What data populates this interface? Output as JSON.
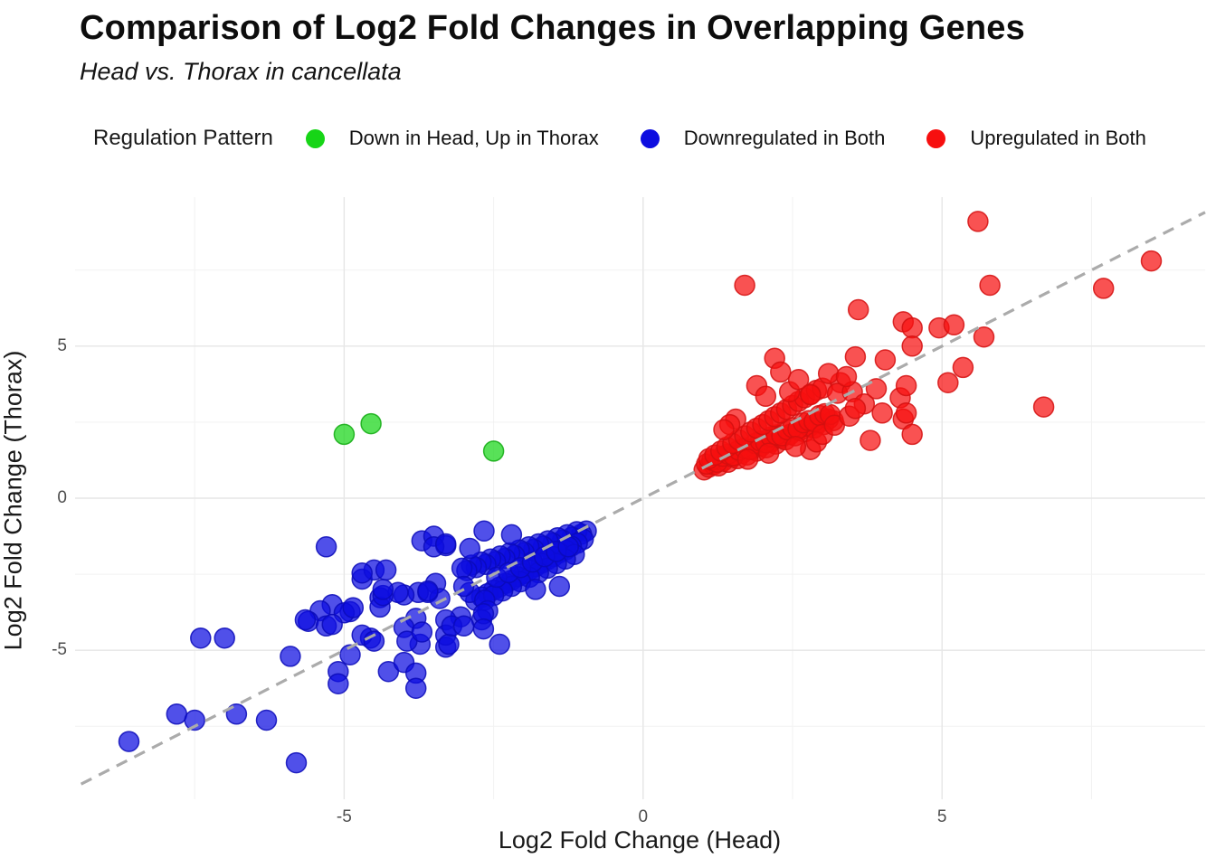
{
  "page": {
    "title": "Comparison of Log2 Fold Changes in Overlapping Genes",
    "subtitle": "Head vs. Thorax in cancellata"
  },
  "legend": {
    "title": "Regulation Pattern",
    "items": [
      {
        "label": "Down in Head, Up in Thorax",
        "color": "#17d517"
      },
      {
        "label": "Downregulated in Both",
        "color": "#0d0de0"
      },
      {
        "label": "Upregulated in Both",
        "color": "#f70f0f"
      }
    ]
  },
  "chart_data": {
    "type": "scatter",
    "title": "Comparison of Log2 Fold Changes in Overlapping Genes",
    "subtitle": "Head vs. Thorax in cancellata",
    "xlabel": "Log2 Fold Change (Head)",
    "ylabel": "Log2 Fold Change (Thorax)",
    "xlim": [
      -9.5,
      9.4
    ],
    "ylim": [
      -9.9,
      9.9
    ],
    "x_ticks": [
      -5,
      0,
      5
    ],
    "x_tick_labels": [
      "-5",
      "0",
      "5"
    ],
    "y_ticks": [
      -5,
      0,
      5
    ],
    "y_tick_labels": [
      "-5",
      "0",
      "5"
    ],
    "x_minor_ticks": [
      -7.5,
      -2.5,
      2.5,
      7.5
    ],
    "y_minor_ticks": [
      -7.5,
      -2.5,
      2.5,
      7.5
    ],
    "grid": true,
    "legend_position": "top",
    "identity_line": {
      "style": "dashed",
      "slope": 1,
      "intercept": 0,
      "color": "#ababab",
      "from": [
        -9.4,
        -9.4
      ],
      "to": [
        9.4,
        9.4
      ]
    },
    "point_radius_px": 11,
    "major_grid_color": "#e6e6e6",
    "minor_grid_color": "#f2f2f2",
    "series": [
      {
        "name": "Downregulated in Both",
        "color": "#0d0de0",
        "stroke": "#0a0ab8",
        "points": [
          [
            -0.95,
            -1.08
          ],
          [
            -1.03,
            -1.18
          ],
          [
            -1.11,
            -1.1
          ],
          [
            -1.19,
            -1.28
          ],
          [
            -1.27,
            -1.2
          ],
          [
            -1.35,
            -1.38
          ],
          [
            -1.43,
            -1.3
          ],
          [
            -1.51,
            -1.48
          ],
          [
            -1.59,
            -1.4
          ],
          [
            -1.67,
            -1.58
          ],
          [
            -1.75,
            -1.5
          ],
          [
            -1.83,
            -1.68
          ],
          [
            -1.91,
            -1.6
          ],
          [
            -1.99,
            -1.78
          ],
          [
            -2.07,
            -1.7
          ],
          [
            -2.15,
            -1.88
          ],
          [
            -2.23,
            -1.8
          ],
          [
            -2.31,
            -1.98
          ],
          [
            -2.39,
            -1.9
          ],
          [
            -2.47,
            -2.08
          ],
          [
            -2.55,
            -2.0
          ],
          [
            -2.63,
            -2.18
          ],
          [
            -2.71,
            -2.1
          ],
          [
            -2.79,
            -2.28
          ],
          [
            -2.87,
            -2.2
          ],
          [
            -2.95,
            -2.38
          ],
          [
            -3.03,
            -2.3
          ],
          [
            -1.0,
            -1.35
          ],
          [
            -1.1,
            -1.48
          ],
          [
            -1.2,
            -1.58
          ],
          [
            -1.3,
            -1.7
          ],
          [
            -1.4,
            -1.8
          ],
          [
            -1.5,
            -1.92
          ],
          [
            -1.6,
            -2.02
          ],
          [
            -1.7,
            -2.14
          ],
          [
            -1.8,
            -2.25
          ],
          [
            -1.9,
            -2.36
          ],
          [
            -2.0,
            -2.48
          ],
          [
            -2.1,
            -2.58
          ],
          [
            -2.2,
            -2.7
          ],
          [
            -2.3,
            -2.8
          ],
          [
            -2.4,
            -2.92
          ],
          [
            -2.5,
            -3.02
          ],
          [
            -2.6,
            -3.14
          ],
          [
            -2.7,
            -3.25
          ],
          [
            -2.8,
            -3.36
          ],
          [
            -2.9,
            -3.1
          ],
          [
            -3.0,
            -2.9
          ],
          [
            -1.15,
            -1.85
          ],
          [
            -1.3,
            -2.0
          ],
          [
            -1.45,
            -2.15
          ],
          [
            -1.6,
            -2.3
          ],
          [
            -1.75,
            -2.45
          ],
          [
            -1.9,
            -2.6
          ],
          [
            -2.05,
            -2.75
          ],
          [
            -2.2,
            -2.9
          ],
          [
            -2.35,
            -3.05
          ],
          [
            -2.5,
            -3.2
          ],
          [
            -2.65,
            -3.35
          ],
          [
            -2.45,
            -2.6
          ],
          [
            -2.25,
            -2.45
          ],
          [
            -2.05,
            -2.28
          ],
          [
            -1.85,
            -2.1
          ],
          [
            -1.65,
            -1.92
          ],
          [
            -1.45,
            -1.75
          ],
          [
            -1.25,
            -1.6
          ],
          [
            -1.4,
            -2.9
          ],
          [
            -1.8,
            -3.0
          ],
          [
            -2.6,
            -3.7
          ],
          [
            -2.7,
            -4.0
          ],
          [
            -2.67,
            -3.8
          ],
          [
            -2.67,
            -4.3
          ],
          [
            -2.4,
            -4.8
          ],
          [
            -3.05,
            -3.9
          ],
          [
            -3.3,
            -4.0
          ],
          [
            -3.3,
            -4.9
          ],
          [
            -3.73,
            -4.8
          ],
          [
            -3.8,
            -3.95
          ],
          [
            -4.0,
            -4.25
          ],
          [
            -4.56,
            -4.6
          ],
          [
            -3.47,
            -2.8
          ],
          [
            -3.6,
            -3.1
          ],
          [
            -3.76,
            -3.1
          ],
          [
            -4.0,
            -3.18
          ],
          [
            -4.4,
            -3.27
          ],
          [
            -4.4,
            -3.58
          ],
          [
            -4.9,
            -3.73
          ],
          [
            -4.7,
            -2.66
          ],
          [
            -4.5,
            -2.36
          ],
          [
            -4.3,
            -2.36
          ],
          [
            -4.7,
            -2.46
          ],
          [
            -4.1,
            -3.1
          ],
          [
            -4.35,
            -3.2
          ],
          [
            -4.35,
            -3.0
          ],
          [
            -5.2,
            -3.5
          ],
          [
            -5.4,
            -3.7
          ],
          [
            -5.0,
            -3.77
          ],
          [
            -4.85,
            -3.6
          ],
          [
            -5.6,
            -4.05
          ],
          [
            -5.65,
            -4.0
          ],
          [
            -5.3,
            -4.2
          ],
          [
            -3.7,
            -1.4
          ],
          [
            -3.5,
            -1.25
          ],
          [
            -3.3,
            -1.56
          ],
          [
            -3.5,
            -1.6
          ],
          [
            -3.3,
            -1.5
          ],
          [
            -2.9,
            -1.65
          ],
          [
            -2.66,
            -1.08
          ],
          [
            -2.2,
            -1.2
          ],
          [
            -5.3,
            -1.6
          ],
          [
            -3.4,
            -3.3
          ],
          [
            -3.6,
            -3.05
          ],
          [
            -7.4,
            -4.6
          ],
          [
            -7.0,
            -4.6
          ],
          [
            -5.9,
            -5.2
          ],
          [
            -7.8,
            -7.1
          ],
          [
            -7.5,
            -7.3
          ],
          [
            -6.8,
            -7.1
          ],
          [
            -6.3,
            -7.3
          ],
          [
            -8.6,
            -8.0
          ],
          [
            -5.8,
            -8.7
          ],
          [
            -4.9,
            -5.15
          ],
          [
            -5.1,
            -5.7
          ],
          [
            -5.1,
            -6.1
          ],
          [
            -4.26,
            -5.7
          ],
          [
            -4.0,
            -5.4
          ],
          [
            -3.8,
            -5.75
          ],
          [
            -3.8,
            -6.25
          ],
          [
            -4.7,
            -4.5
          ],
          [
            -4.5,
            -4.7
          ],
          [
            -3.95,
            -4.7
          ],
          [
            -3.7,
            -4.4
          ],
          [
            -3.3,
            -4.5
          ],
          [
            -3.25,
            -4.8
          ],
          [
            -3.2,
            -4.2
          ],
          [
            -3.0,
            -4.2
          ],
          [
            -5.2,
            -4.15
          ]
        ]
      },
      {
        "name": "Upregulated in Both",
        "color": "#f70f0f",
        "stroke": "#d40f0f",
        "points": [
          [
            1.02,
            0.93
          ],
          [
            1.1,
            1.02
          ],
          [
            1.18,
            1.1
          ],
          [
            1.26,
            1.06
          ],
          [
            1.34,
            1.22
          ],
          [
            1.42,
            1.18
          ],
          [
            1.5,
            1.35
          ],
          [
            1.58,
            1.3
          ],
          [
            1.66,
            1.48
          ],
          [
            1.74,
            1.42
          ],
          [
            1.82,
            1.6
          ],
          [
            1.9,
            1.55
          ],
          [
            1.98,
            1.72
          ],
          [
            2.06,
            1.66
          ],
          [
            2.14,
            1.85
          ],
          [
            2.22,
            1.78
          ],
          [
            2.3,
            1.98
          ],
          [
            2.38,
            1.92
          ],
          [
            2.46,
            2.1
          ],
          [
            2.54,
            2.05
          ],
          [
            2.62,
            2.22
          ],
          [
            2.7,
            2.18
          ],
          [
            2.78,
            2.35
          ],
          [
            2.86,
            2.3
          ],
          [
            2.94,
            2.48
          ],
          [
            3.02,
            2.42
          ],
          [
            3.1,
            2.6
          ],
          [
            3.18,
            2.55
          ],
          [
            1.06,
            1.12
          ],
          [
            1.15,
            1.25
          ],
          [
            1.24,
            1.18
          ],
          [
            1.33,
            1.38
          ],
          [
            1.42,
            1.45
          ],
          [
            1.51,
            1.4
          ],
          [
            1.6,
            1.58
          ],
          [
            1.69,
            1.65
          ],
          [
            1.78,
            1.6
          ],
          [
            1.87,
            1.8
          ],
          [
            1.96,
            1.88
          ],
          [
            2.05,
            1.82
          ],
          [
            2.14,
            2.02
          ],
          [
            2.23,
            2.08
          ],
          [
            2.32,
            2.05
          ],
          [
            2.41,
            2.25
          ],
          [
            2.5,
            2.32
          ],
          [
            2.59,
            2.28
          ],
          [
            2.68,
            2.48
          ],
          [
            2.77,
            2.55
          ],
          [
            2.86,
            2.52
          ],
          [
            2.95,
            2.72
          ],
          [
            3.04,
            2.78
          ],
          [
            3.13,
            2.75
          ],
          [
            1.1,
            1.3
          ],
          [
            1.2,
            1.42
          ],
          [
            1.3,
            1.55
          ],
          [
            1.4,
            1.68
          ],
          [
            1.5,
            1.8
          ],
          [
            1.6,
            1.92
          ],
          [
            1.7,
            2.05
          ],
          [
            1.8,
            2.18
          ],
          [
            1.9,
            2.3
          ],
          [
            2.0,
            2.42
          ],
          [
            2.1,
            2.55
          ],
          [
            2.2,
            2.68
          ],
          [
            2.3,
            2.8
          ],
          [
            2.4,
            2.92
          ],
          [
            2.5,
            3.05
          ],
          [
            2.6,
            3.18
          ],
          [
            2.7,
            3.3
          ],
          [
            2.8,
            3.42
          ],
          [
            2.9,
            3.55
          ],
          [
            3.0,
            3.62
          ],
          [
            1.55,
            2.6
          ],
          [
            1.45,
            2.42
          ],
          [
            1.35,
            2.25
          ],
          [
            1.9,
            3.7
          ],
          [
            2.05,
            3.35
          ],
          [
            2.2,
            4.6
          ],
          [
            2.45,
            3.5
          ],
          [
            2.6,
            3.9
          ],
          [
            2.8,
            3.4
          ],
          [
            3.3,
            3.8
          ],
          [
            3.25,
            3.45
          ],
          [
            3.55,
            4.65
          ],
          [
            3.5,
            3.5
          ],
          [
            3.7,
            3.1
          ],
          [
            3.9,
            3.6
          ],
          [
            4.05,
            4.55
          ],
          [
            4.3,
            3.3
          ],
          [
            3.1,
            4.1
          ],
          [
            3.4,
            4.0
          ],
          [
            2.3,
            4.15
          ],
          [
            2.8,
            1.6
          ],
          [
            2.9,
            1.85
          ],
          [
            3.0,
            2.1
          ],
          [
            3.2,
            2.4
          ],
          [
            3.45,
            2.7
          ],
          [
            3.55,
            2.95
          ],
          [
            3.8,
            1.9
          ],
          [
            2.55,
            1.7
          ],
          [
            2.1,
            1.48
          ],
          [
            1.75,
            1.28
          ],
          [
            4.0,
            2.8
          ],
          [
            4.35,
            2.6
          ],
          [
            5.6,
            9.1
          ],
          [
            8.5,
            7.8
          ],
          [
            5.8,
            7.0
          ],
          [
            7.7,
            6.9
          ],
          [
            1.7,
            7.0
          ],
          [
            3.6,
            6.2
          ],
          [
            4.35,
            5.8
          ],
          [
            4.5,
            5.6
          ],
          [
            4.95,
            5.6
          ],
          [
            5.2,
            5.7
          ],
          [
            5.7,
            5.3
          ],
          [
            4.5,
            5.0
          ],
          [
            5.35,
            4.3
          ],
          [
            5.1,
            3.8
          ],
          [
            4.4,
            3.7
          ],
          [
            6.7,
            3.0
          ],
          [
            4.4,
            2.8
          ],
          [
            4.5,
            2.1
          ]
        ]
      },
      {
        "name": "Down in Head, Up in Thorax",
        "color": "#17d517",
        "stroke": "#12aa12",
        "points": [
          [
            -5.0,
            2.1
          ],
          [
            -4.55,
            2.45
          ],
          [
            -2.5,
            1.55
          ]
        ]
      }
    ]
  }
}
